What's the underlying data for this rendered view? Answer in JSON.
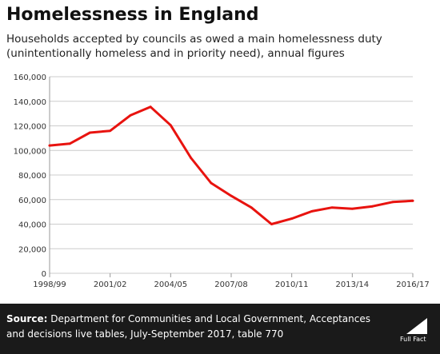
{
  "header": {
    "title": "Homelessness in England",
    "subtitle": "Households accepted by councils as owed a main homelessness duty (unintentionally homeless and in priority need), annual figures"
  },
  "chart_data": {
    "type": "line",
    "title": "Homelessness in England",
    "subtitle": "Households accepted by councils as owed a main homelessness duty (unintentionally homeless and in priority need), annual figures",
    "xlabel": "",
    "ylabel": "",
    "x": [
      "1998/99",
      "1999/00",
      "2000/01",
      "2001/02",
      "2002/03",
      "2003/04",
      "2004/05",
      "2005/06",
      "2006/07",
      "2007/08",
      "2008/09",
      "2009/10",
      "2010/11",
      "2011/12",
      "2012/13",
      "2013/14",
      "2014/15",
      "2015/16",
      "2016/17"
    ],
    "x_tick_labels": [
      "1998/99",
      "2001/02",
      "2004/05",
      "2007/08",
      "2010/11",
      "2013/14",
      "2016/17"
    ],
    "y_tick_labels": [
      "0",
      "20,000",
      "40,000",
      "60,000",
      "80,000",
      "100,000",
      "120,000",
      "140,000",
      "160,000"
    ],
    "ylim": [
      0,
      160000
    ],
    "grid": "horizontal",
    "series": [
      {
        "color": "#e8130f",
        "values": [
          104000,
          105500,
          114500,
          116000,
          128500,
          135500,
          120500,
          94000,
          73500,
          63000,
          53500,
          40000,
          44500,
          50500,
          53500,
          52500,
          54500,
          58000,
          59000
        ]
      }
    ]
  },
  "footer": {
    "source_label": "Source:",
    "source_text": "Department for Communities and Local Government, Acceptances and decisions live tables, July-September 2017, table 770",
    "logo_text": "Full Fact"
  },
  "colors": {
    "line": "#e8130f",
    "grid": "#cccccc",
    "footer_bg": "#1a1a1a"
  }
}
